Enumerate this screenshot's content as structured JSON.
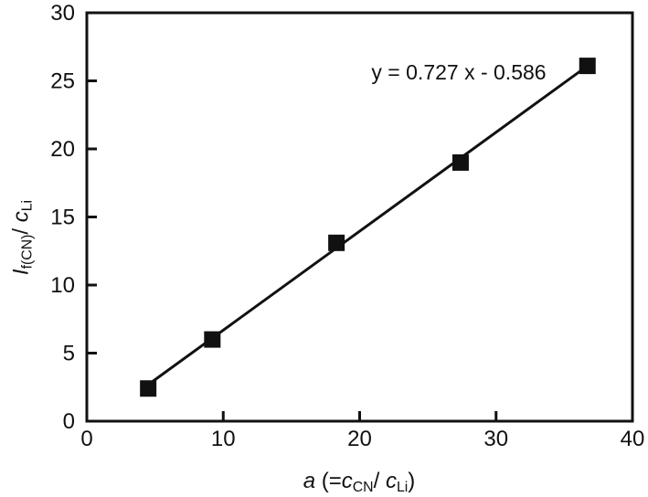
{
  "figure": {
    "background": "#ffffff"
  },
  "chart_data": {
    "type": "scatter",
    "title": "",
    "equation_annotation": "y = 0.727 x - 0.586",
    "x_axis": {
      "label_plain": "a (=cCN/ cLi)",
      "label_segments": [
        {
          "t": "a",
          "style": "i"
        },
        {
          "t": " (=",
          "style": ""
        },
        {
          "t": "c",
          "style": "i"
        },
        {
          "t": "CN",
          "style": "sub"
        },
        {
          "t": "/ ",
          "style": ""
        },
        {
          "t": "c",
          "style": "i"
        },
        {
          "t": "Li",
          "style": "sub"
        },
        {
          "t": ")",
          "style": ""
        }
      ],
      "min": 0,
      "max": 40,
      "ticks": [
        0,
        10,
        20,
        30,
        40
      ]
    },
    "y_axis": {
      "label_plain": "If(CN)/ cLi",
      "label_segments": [
        {
          "t": "I",
          "style": "i"
        },
        {
          "t": "f(CN)",
          "style": "sub"
        },
        {
          "t": "/ ",
          "style": ""
        },
        {
          "t": "c",
          "style": "i"
        },
        {
          "t": "Li",
          "style": "sub"
        }
      ],
      "min": 0,
      "max": 30,
      "ticks": [
        0,
        5,
        10,
        15,
        20,
        25,
        30
      ]
    },
    "series": [
      {
        "name": "measured-points",
        "marker": "filled-square",
        "points": [
          [
            4.5,
            2.4
          ],
          [
            9.2,
            6.0
          ],
          [
            18.3,
            13.1
          ],
          [
            27.4,
            19.0
          ],
          [
            36.7,
            26.1
          ]
        ]
      }
    ],
    "fit_line": {
      "slope": 0.727,
      "intercept": -0.586,
      "x_start": 4.5,
      "x_end": 36.7
    },
    "grid": false,
    "legend": null,
    "colors": {
      "marker": "#111111",
      "line": "#111111",
      "axis": "#111111",
      "text": "#111111",
      "background": "#ffffff"
    }
  }
}
